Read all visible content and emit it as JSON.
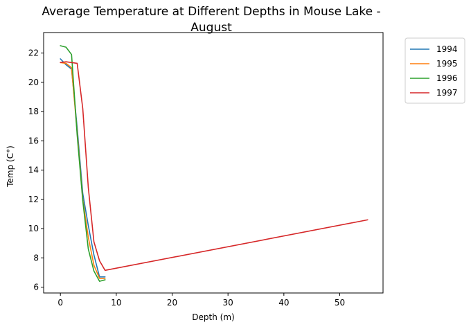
{
  "chart_data": {
    "type": "line",
    "title": "Average Temperature at Different Depths in Mouse Lake - August",
    "title_lines": [
      "Average Temperature at Different Depths in Mouse Lake -",
      "August"
    ],
    "xlabel": "Depth (m)",
    "ylabel": "Temp (C°)",
    "xlim": [
      -3,
      57.75
    ],
    "ylim": [
      5.6,
      23.4
    ],
    "xticks": [
      0,
      10,
      20,
      30,
      40,
      50
    ],
    "yticks": [
      6,
      8,
      10,
      12,
      14,
      16,
      18,
      20,
      22
    ],
    "grid": false,
    "legend_position": "outside-top-right",
    "series": [
      {
        "name": "1994",
        "color": "#1f77b4",
        "x": [
          0,
          1,
          2,
          3,
          4,
          5,
          6,
          7,
          8
        ],
        "y": [
          21.6,
          21.2,
          20.9,
          16.9,
          12.4,
          10.2,
          8.2,
          6.7,
          6.7
        ]
      },
      {
        "name": "1995",
        "color": "#ff7f0e",
        "x": [
          0,
          1,
          2,
          3,
          4,
          5,
          6,
          7,
          8
        ],
        "y": [
          21.35,
          21.3,
          21.0,
          16.6,
          12.0,
          9.4,
          7.5,
          6.6,
          6.6
        ]
      },
      {
        "name": "1996",
        "color": "#2ca02c",
        "x": [
          0,
          1,
          2,
          3,
          4,
          5,
          6,
          7,
          8
        ],
        "y": [
          22.5,
          22.4,
          21.9,
          16.4,
          11.9,
          8.6,
          7.1,
          6.4,
          6.5
        ]
      },
      {
        "name": "1997",
        "color": "#d62728",
        "x": [
          0,
          1,
          2,
          3,
          4,
          5,
          6,
          7,
          8,
          55
        ],
        "y": [
          21.35,
          21.4,
          21.35,
          21.3,
          18.2,
          12.8,
          9.1,
          7.8,
          7.15,
          10.6
        ]
      }
    ]
  }
}
